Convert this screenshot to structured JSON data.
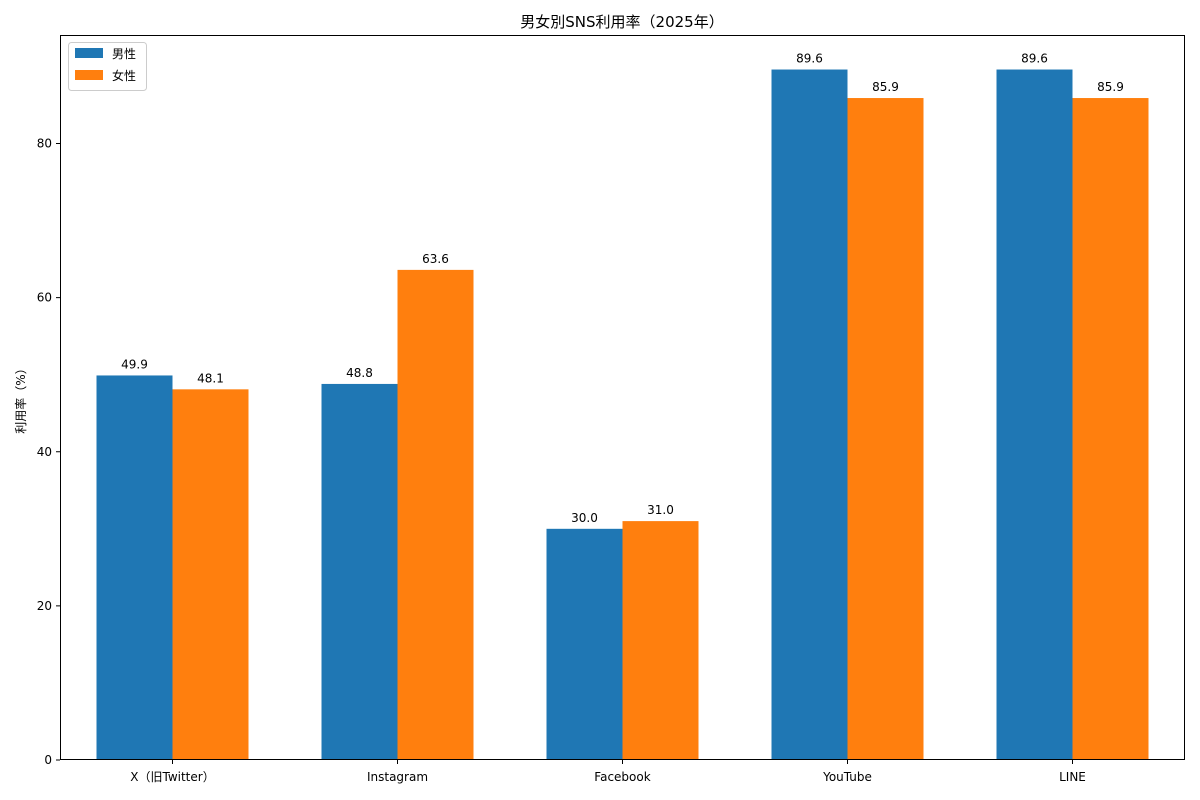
{
  "chart_data": {
    "type": "bar",
    "title": "男女別SNS利用率（2025年）",
    "xlabel": "",
    "ylabel": "利用率（%）",
    "categories": [
      "X（旧Twitter）",
      "Instagram",
      "Facebook",
      "YouTube",
      "LINE"
    ],
    "series": [
      {
        "name": "男性",
        "color": "#1f77b4",
        "values": [
          49.9,
          48.8,
          30.0,
          89.6,
          89.6
        ]
      },
      {
        "name": "女性",
        "color": "#ff7f0e",
        "values": [
          48.1,
          63.6,
          31.0,
          85.9,
          85.9
        ]
      }
    ],
    "ylim": [
      0,
      94.08
    ],
    "yticks": [
      0,
      20,
      40,
      60,
      80
    ],
    "grid": false,
    "legend_position": "top-left",
    "data_label_format": "1 decimal"
  }
}
